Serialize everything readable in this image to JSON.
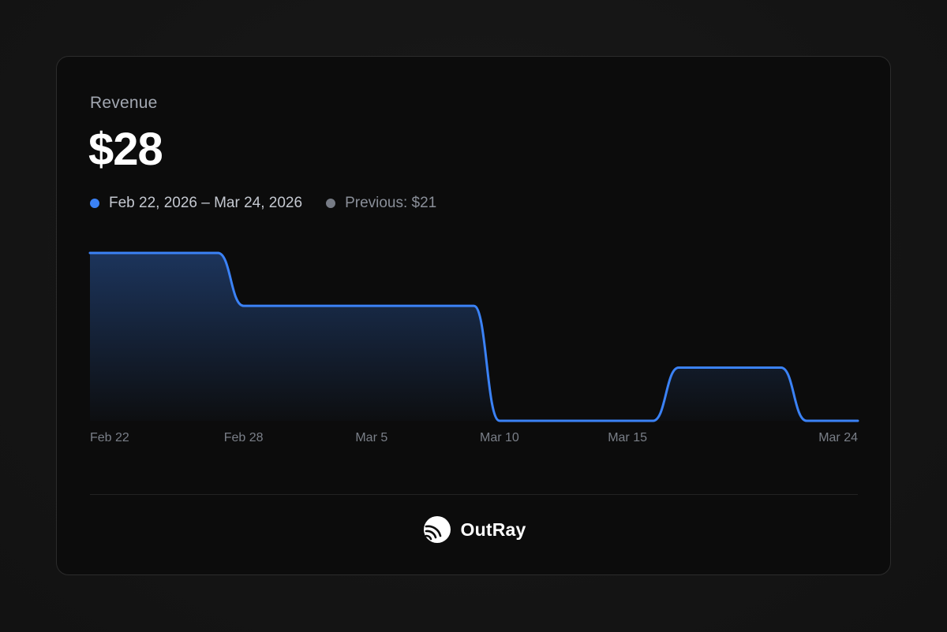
{
  "card": {
    "label": "Revenue",
    "value": "$28",
    "legend": {
      "current_range": "Feb 22, 2026 – Mar 24, 2026",
      "previous": "Previous: $21"
    }
  },
  "brand": {
    "name": "OutRay",
    "icon": "outray-logo-icon"
  },
  "colors": {
    "line": "#3b82f6",
    "previous_dot": "#777c86",
    "background": "#0c0c0c"
  },
  "chart_data": {
    "type": "area",
    "x": [
      "2026-02-22",
      "2026-02-28",
      "2026-03-05",
      "2026-03-10",
      "2026-03-15",
      "2026-03-24"
    ],
    "x_tick_labels": [
      "Feb 22",
      "Feb 28",
      "Mar 5",
      "Mar 10",
      "Mar 15",
      "Mar 24"
    ],
    "series": [
      {
        "values_relative": [
          {
            "x": "2026-02-22",
            "y": 1.0
          },
          {
            "x": "2026-02-27",
            "y": 1.0
          },
          {
            "x": "2026-02-28",
            "y": 0.685
          },
          {
            "x": "2026-03-09",
            "y": 0.685
          },
          {
            "x": "2026-03-10",
            "y": 0.0
          },
          {
            "x": "2026-03-16",
            "y": 0.0
          },
          {
            "x": "2026-03-17",
            "y": 0.317
          },
          {
            "x": "2026-03-21",
            "y": 0.317
          },
          {
            "x": "2026-03-22",
            "y": 0.0
          },
          {
            "x": "2026-03-24",
            "y": 0.0
          }
        ]
      }
    ],
    "grid": false,
    "legend_position": "top-left"
  }
}
